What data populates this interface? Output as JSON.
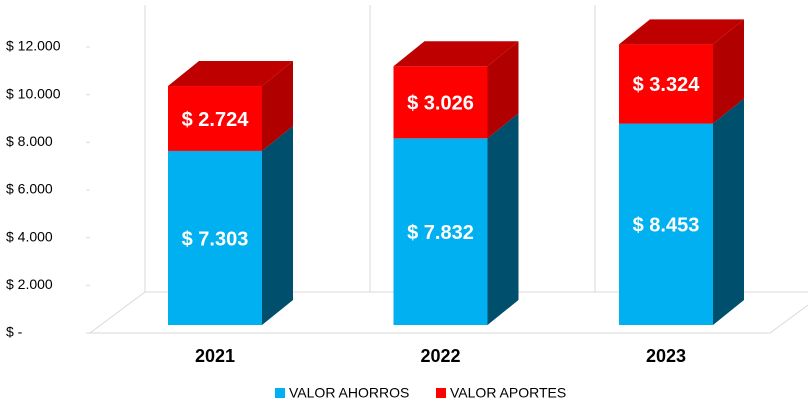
{
  "chart_data": {
    "type": "bar3d_stacked",
    "categories": [
      "2021",
      "2022",
      "2023"
    ],
    "series": [
      {
        "name": "VALOR AHORROS",
        "color": "#00b0f0",
        "values": [
          7303,
          7832,
          8453
        ],
        "value_labels": [
          "$ 7.303",
          "$ 7.832",
          "$ 8.453"
        ]
      },
      {
        "name": "VALOR APORTES",
        "color": "#ff0000",
        "values": [
          2724,
          3026,
          3324
        ],
        "value_labels": [
          "$ 2.724",
          "$ 3.026",
          "$ 3.324"
        ]
      }
    ],
    "ylim": [
      0,
      12000
    ],
    "yticks": [
      {
        "value": 0,
        "label": "$ -"
      },
      {
        "value": 2000,
        "label": "$ 2.000"
      },
      {
        "value": 4000,
        "label": "$ 4.000"
      },
      {
        "value": 6000,
        "label": "$ 6.000"
      },
      {
        "value": 8000,
        "label": "$ 8.000"
      },
      {
        "value": 10000,
        "label": "$ 10.000"
      },
      {
        "value": 12000,
        "label": "$ 12.000"
      }
    ],
    "legend": "bottom"
  }
}
